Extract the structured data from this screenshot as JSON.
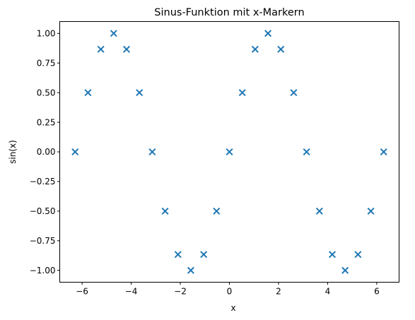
{
  "chart_data": {
    "type": "scatter",
    "title": "Sinus-Funktion mit x-Markern",
    "xlabel": "x",
    "ylabel": "sin(x)",
    "xlim": [
      -6.91,
      6.91
    ],
    "ylim": [
      -1.1,
      1.1
    ],
    "xticks": [
      -6,
      -4,
      -2,
      0,
      2,
      4,
      6
    ],
    "xtick_labels": [
      "−6",
      "−4",
      "−2",
      "0",
      "2",
      "4",
      "6"
    ],
    "yticks": [
      -1.0,
      -0.75,
      -0.5,
      -0.25,
      0.0,
      0.25,
      0.5,
      0.75,
      1.0
    ],
    "ytick_labels": [
      "−1.00",
      "−0.75",
      "−0.50",
      "−0.25",
      "0.00",
      "0.25",
      "0.50",
      "0.75",
      "1.00"
    ],
    "grid": false,
    "marker": "x",
    "marker_color": "#1f77b4",
    "series": [
      {
        "x": [
          -6.283,
          -5.76,
          -5.236,
          -4.712,
          -4.189,
          -3.665,
          -3.142,
          -2.618,
          -2.094,
          -1.571,
          -1.047,
          -0.524,
          0.0,
          0.524,
          1.047,
          1.571,
          2.094,
          2.618,
          3.142,
          3.665,
          4.189,
          4.712,
          5.236,
          5.76,
          6.283
        ],
        "y": [
          0.0,
          0.5,
          0.866,
          1.0,
          0.866,
          0.5,
          0.0,
          -0.5,
          -0.866,
          -1.0,
          -0.866,
          -0.5,
          0.0,
          0.5,
          0.866,
          1.0,
          0.866,
          0.5,
          0.0,
          -0.5,
          -0.866,
          -1.0,
          -0.866,
          -0.5,
          0.0
        ]
      }
    ]
  }
}
